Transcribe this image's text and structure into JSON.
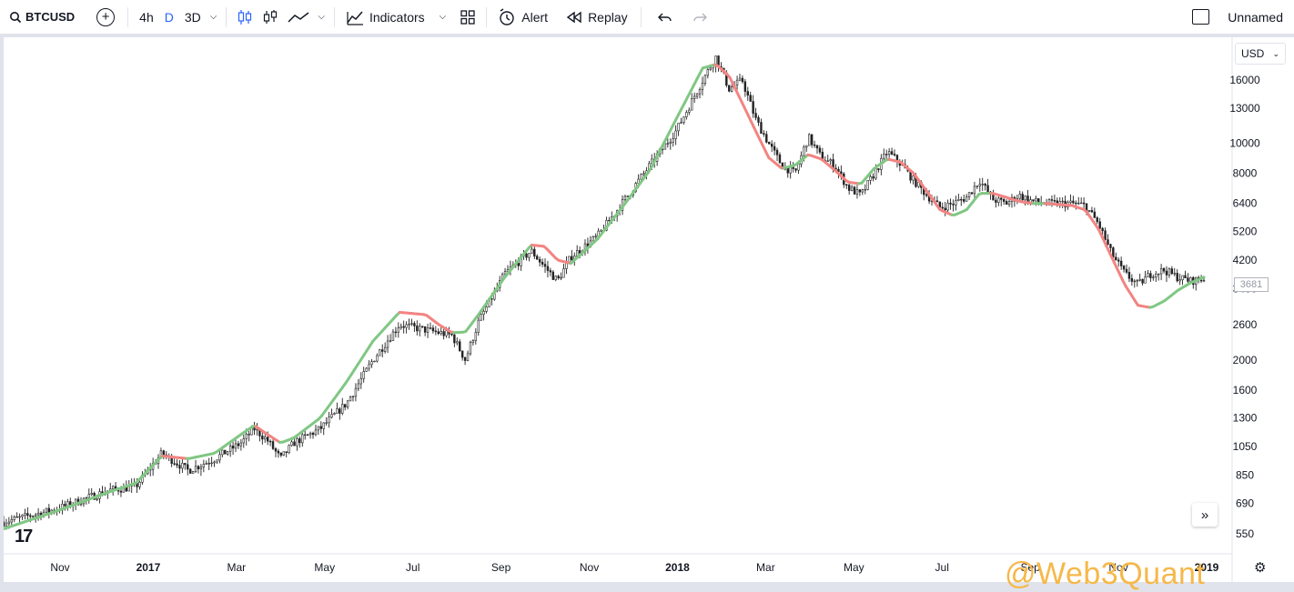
{
  "toolbar": {
    "symbol": "BTCUSD",
    "intervals": [
      "4h",
      "D",
      "3D"
    ],
    "active_interval": "D",
    "indicators_label": "Indicators",
    "alert_label": "Alert",
    "replay_label": "Replay",
    "layout_name": "Unnamed",
    "icons": [
      "search-icon",
      "add-symbol-icon",
      "chevron-down-icon",
      "candles-icon",
      "bars-icon",
      "line-icon",
      "indicators-icon",
      "templates-icon",
      "alert-icon",
      "replay-icon",
      "undo-icon",
      "redo-icon"
    ]
  },
  "chart": {
    "currency": "USD",
    "last_price": "3681",
    "watermark": "@Web3Quant",
    "accent_up": "#81c784",
    "accent_down": "#f28482"
  },
  "chart_data": {
    "type": "candlestick",
    "scale": "log",
    "y_ticks": [
      550,
      690,
      850,
      1050,
      1300,
      1600,
      2000,
      2600,
      3400,
      4200,
      5200,
      6400,
      8000,
      10000,
      13000,
      16000
    ],
    "x_ticks": [
      "Nov",
      "2017",
      "Mar",
      "May",
      "Jul",
      "Sep",
      "Nov",
      "2018",
      "Mar",
      "May",
      "Jul",
      "Sep",
      "Nov",
      "2019"
    ],
    "ylim": [
      480,
      22000
    ],
    "price_path": [
      [
        0,
        600
      ],
      [
        4,
        660
      ],
      [
        8,
        760
      ],
      [
        10,
        780
      ],
      [
        12,
        1000
      ],
      [
        14,
        880
      ],
      [
        16,
        960
      ],
      [
        18,
        1080
      ],
      [
        19,
        1200
      ],
      [
        20,
        1100
      ],
      [
        21,
        960
      ],
      [
        22,
        1080
      ],
      [
        24,
        1200
      ],
      [
        26,
        1450
      ],
      [
        28,
        2000
      ],
      [
        30,
        2600
      ],
      [
        32,
        2500
      ],
      [
        34,
        2400
      ],
      [
        35,
        2000
      ],
      [
        36,
        2650
      ],
      [
        38,
        3800
      ],
      [
        40,
        4500
      ],
      [
        41,
        4000
      ],
      [
        42,
        3600
      ],
      [
        43,
        4300
      ],
      [
        45,
        5000
      ],
      [
        47,
        6500
      ],
      [
        49,
        8500
      ],
      [
        51,
        11000
      ],
      [
        53,
        16000
      ],
      [
        54,
        19000
      ],
      [
        55,
        15000
      ],
      [
        56,
        16000
      ],
      [
        57,
        12000
      ],
      [
        58,
        10000
      ],
      [
        59,
        8500
      ],
      [
        60,
        8000
      ],
      [
        61,
        10500
      ],
      [
        62,
        9000
      ],
      [
        63,
        8500
      ],
      [
        64,
        7200
      ],
      [
        65,
        6800
      ],
      [
        66,
        8000
      ],
      [
        67,
        9400
      ],
      [
        68,
        8600
      ],
      [
        69,
        7600
      ],
      [
        70,
        6800
      ],
      [
        71,
        6200
      ],
      [
        72,
        6400
      ],
      [
        73,
        6700
      ],
      [
        74,
        7600
      ],
      [
        75,
        6600
      ],
      [
        76,
        6400
      ],
      [
        77,
        6800
      ],
      [
        78,
        6500
      ],
      [
        79,
        6400
      ],
      [
        80,
        6400
      ],
      [
        81,
        6400
      ],
      [
        82,
        6300
      ],
      [
        83,
        5500
      ],
      [
        84,
        4400
      ],
      [
        85,
        3800
      ],
      [
        86,
        3500
      ],
      [
        87,
        3800
      ],
      [
        88,
        3900
      ],
      [
        89,
        3700
      ],
      [
        90,
        3600
      ],
      [
        91,
        3650
      ]
    ],
    "trend_line": [
      [
        0,
        570
      ],
      [
        4,
        650
      ],
      [
        8,
        750
      ],
      [
        10,
        800
      ],
      [
        12,
        980
      ],
      [
        14,
        960
      ],
      [
        16,
        1000
      ],
      [
        18,
        1150
      ],
      [
        19,
        1230
      ],
      [
        20,
        1150
      ],
      [
        21,
        1080
      ],
      [
        22,
        1120
      ],
      [
        24,
        1300
      ],
      [
        26,
        1700
      ],
      [
        28,
        2300
      ],
      [
        30,
        2850
      ],
      [
        32,
        2800
      ],
      [
        33,
        2600
      ],
      [
        34,
        2450
      ],
      [
        35,
        2460
      ],
      [
        36,
        2800
      ],
      [
        38,
        3700
      ],
      [
        40,
        4700
      ],
      [
        41,
        4650
      ],
      [
        42,
        4200
      ],
      [
        43,
        4100
      ],
      [
        45,
        4900
      ],
      [
        47,
        6300
      ],
      [
        49,
        8200
      ],
      [
        51,
        12000
      ],
      [
        53,
        17500
      ],
      [
        54,
        18000
      ],
      [
        55,
        16500
      ],
      [
        56,
        13500
      ],
      [
        57,
        11000
      ],
      [
        58,
        9000
      ],
      [
        59,
        8300
      ],
      [
        60,
        8500
      ],
      [
        61,
        9200
      ],
      [
        62,
        8900
      ],
      [
        63,
        8200
      ],
      [
        64,
        7500
      ],
      [
        65,
        7400
      ],
      [
        66,
        8300
      ],
      [
        67,
        8900
      ],
      [
        68,
        8700
      ],
      [
        69,
        8000
      ],
      [
        70,
        7000
      ],
      [
        71,
        6100
      ],
      [
        72,
        5850
      ],
      [
        73,
        6100
      ],
      [
        74,
        6900
      ],
      [
        75,
        6900
      ],
      [
        76,
        6700
      ],
      [
        77,
        6500
      ],
      [
        78,
        6400
      ],
      [
        79,
        6400
      ],
      [
        80,
        6350
      ],
      [
        81,
        6300
      ],
      [
        82,
        6100
      ],
      [
        83,
        5300
      ],
      [
        84,
        4300
      ],
      [
        85,
        3500
      ],
      [
        86,
        3000
      ],
      [
        87,
        2950
      ],
      [
        88,
        3100
      ],
      [
        89,
        3350
      ],
      [
        90,
        3550
      ],
      [
        91,
        3700
      ]
    ]
  }
}
